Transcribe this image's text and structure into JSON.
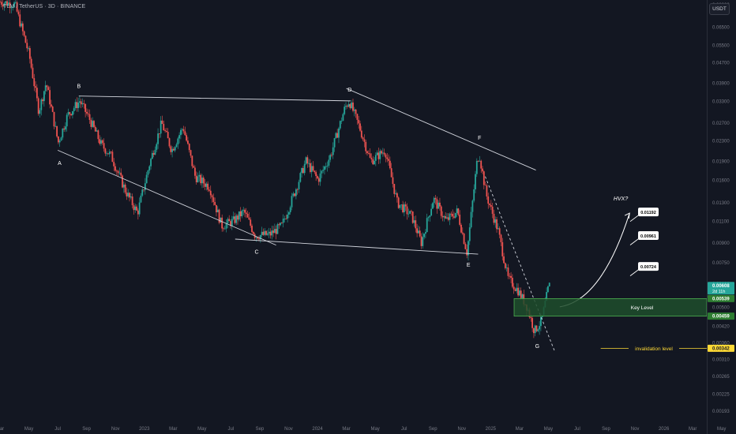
{
  "header": {
    "title": "TLM / TetherUS · 3D · BINANCE",
    "currency_button": "USDT"
  },
  "colors": {
    "background": "#131722",
    "up": "#26a69a",
    "down": "#ef5350",
    "pattern_lines": "#d1d4dc",
    "key_level_fill": "#1e4d2b",
    "key_level_border": "#4caf50",
    "invalidation": "#fdd835",
    "axis_text": "#787b86"
  },
  "chart_data": {
    "type": "candlestick",
    "y_scale": "log",
    "ylim": [
      0.0017,
      0.082
    ],
    "xlim": [
      "2022-03",
      "2026-06"
    ],
    "y_ticks": [
      "0.08000",
      "0.06500",
      "0.05500",
      "0.04700",
      "0.03900",
      "0.03300",
      "0.02700",
      "0.02300",
      "0.01900",
      "0.01600",
      "0.01300",
      "0.01100",
      "0.00900",
      "0.00750",
      "0.00620",
      "0.00500",
      "0.00420",
      "0.00360",
      "0.00310",
      "0.00265",
      "0.00225",
      "0.00193"
    ],
    "x_ticks": [
      "Mar",
      "May",
      "Jul",
      "Sep",
      "Nov",
      "2023",
      "Mar",
      "May",
      "Jul",
      "Sep",
      "Nov",
      "2024",
      "Mar",
      "May",
      "Jul",
      "Sep",
      "Nov",
      "2025",
      "Mar",
      "May",
      "Jul",
      "Sep",
      "Nov",
      "2026",
      "Mar",
      "May"
    ],
    "x_tick_dates": [
      "2022-03",
      "2022-05",
      "2022-07",
      "2022-09",
      "2022-11",
      "2023-01",
      "2023-03",
      "2023-05",
      "2023-07",
      "2023-09",
      "2023-11",
      "2024-01",
      "2024-03",
      "2024-05",
      "2024-07",
      "2024-09",
      "2024-11",
      "2025-01",
      "2025-03",
      "2025-05",
      "2025-07",
      "2025-09",
      "2025-11",
      "2026-01",
      "2026-03",
      "2026-05"
    ],
    "price_path": [
      [
        "2022-03-01",
        0.082
      ],
      [
        "2022-04-05",
        0.08
      ],
      [
        "2022-05-05",
        0.05
      ],
      [
        "2022-05-25",
        0.03
      ],
      [
        "2022-06-10",
        0.039
      ],
      [
        "2022-07-05",
        0.0225
      ],
      [
        "2022-07-25",
        0.029
      ],
      [
        "2022-08-20",
        0.033
      ],
      [
        "2022-09-10",
        0.028
      ],
      [
        "2022-10-05",
        0.022
      ],
      [
        "2022-10-25",
        0.02
      ],
      [
        "2022-11-25",
        0.0145
      ],
      [
        "2022-12-20",
        0.0118
      ],
      [
        "2023-01-15",
        0.0185
      ],
      [
        "2023-02-10",
        0.027
      ],
      [
        "2023-03-01",
        0.021
      ],
      [
        "2023-03-25",
        0.026
      ],
      [
        "2023-04-20",
        0.0165
      ],
      [
        "2023-05-20",
        0.015
      ],
      [
        "2023-06-15",
        0.0105
      ],
      [
        "2023-07-10",
        0.011
      ],
      [
        "2023-08-01",
        0.012
      ],
      [
        "2023-08-25",
        0.0096
      ],
      [
        "2023-09-25",
        0.0097
      ],
      [
        "2023-10-20",
        0.0105
      ],
      [
        "2023-11-15",
        0.014
      ],
      [
        "2023-12-10",
        0.019
      ],
      [
        "2024-01-05",
        0.016
      ],
      [
        "2024-02-01",
        0.02
      ],
      [
        "2024-03-01",
        0.031
      ],
      [
        "2024-03-10",
        0.033
      ],
      [
        "2024-04-01",
        0.026
      ],
      [
        "2024-04-25",
        0.019
      ],
      [
        "2024-05-25",
        0.021
      ],
      [
        "2024-06-20",
        0.013
      ],
      [
        "2024-07-20",
        0.0115
      ],
      [
        "2024-08-10",
        0.009
      ],
      [
        "2024-09-05",
        0.0135
      ],
      [
        "2024-10-01",
        0.011
      ],
      [
        "2024-10-25",
        0.012
      ],
      [
        "2024-11-15",
        0.0082
      ],
      [
        "2024-12-05",
        0.0185
      ],
      [
        "2024-12-10",
        0.0205
      ],
      [
        "2024-12-25",
        0.014
      ],
      [
        "2025-01-20",
        0.01
      ],
      [
        "2025-02-10",
        0.0065
      ],
      [
        "2025-03-01",
        0.0058
      ],
      [
        "2025-03-20",
        0.005
      ],
      [
        "2025-04-05",
        0.004
      ],
      [
        "2025-04-20",
        0.0044
      ],
      [
        "2025-05-05",
        0.00608
      ]
    ],
    "pattern_points": [
      {
        "label": "A",
        "date": "2022-07-05",
        "price": 0.0203
      },
      {
        "label": "B",
        "date": "2022-08-15",
        "price": 0.0345
      },
      {
        "label": "C",
        "date": "2023-08-25",
        "price": 0.009
      },
      {
        "label": "D",
        "date": "2024-03-08",
        "price": 0.0335
      },
      {
        "label": "E",
        "date": "2024-11-15",
        "price": 0.008
      },
      {
        "label": "F",
        "date": "2024-12-08",
        "price": 0.0215
      },
      {
        "label": "G",
        "date": "2025-04-08",
        "price": 0.0038
      }
    ],
    "trend_lines": [
      {
        "from": [
          "2022-08-15",
          0.0345
        ],
        "to": [
          "2024-03-10",
          0.033
        ]
      },
      {
        "from": [
          "2022-07-01",
          0.021
        ],
        "to": [
          "2023-10-05",
          0.0088
        ]
      },
      {
        "from": [
          "2023-07-10",
          0.0093
        ],
        "to": [
          "2024-12-05",
          0.0081
        ]
      },
      {
        "from": [
          "2024-03-01",
          0.037
        ],
        "to": [
          "2025-04-05",
          0.0175
        ]
      }
    ],
    "dashed_trend": {
      "from": [
        "2024-12-20",
        0.0165
      ],
      "to": [
        "2025-05-15",
        0.0033
      ]
    },
    "key_level": {
      "label": "Key Level",
      "top": 0.00539,
      "bottom": 0.00459,
      "from": "2025-02-20"
    },
    "invalidation": {
      "label": "invalidation level",
      "price": 0.00342,
      "from": "2025-08-20"
    },
    "projection": {
      "from": [
        "2025-05-25",
        0.005
      ],
      "to": [
        "2025-10-20",
        0.0118
      ],
      "label": "HVX?"
    },
    "targets": [
      {
        "label": "0.01192",
        "price": 0.01192
      },
      {
        "label": "0.00961",
        "price": 0.00961
      },
      {
        "label": "0.00724",
        "price": 0.00724
      }
    ],
    "price_tags": [
      {
        "label": "0.00608",
        "sublabel": "2d 11h",
        "price": 0.00608,
        "kind": "current"
      },
      {
        "label": "0.00539",
        "price": 0.00539,
        "kind": "green"
      },
      {
        "label": "0.00459",
        "price": 0.00459,
        "kind": "green"
      },
      {
        "label": "0.00342",
        "price": 0.00342,
        "kind": "yellow"
      }
    ]
  }
}
